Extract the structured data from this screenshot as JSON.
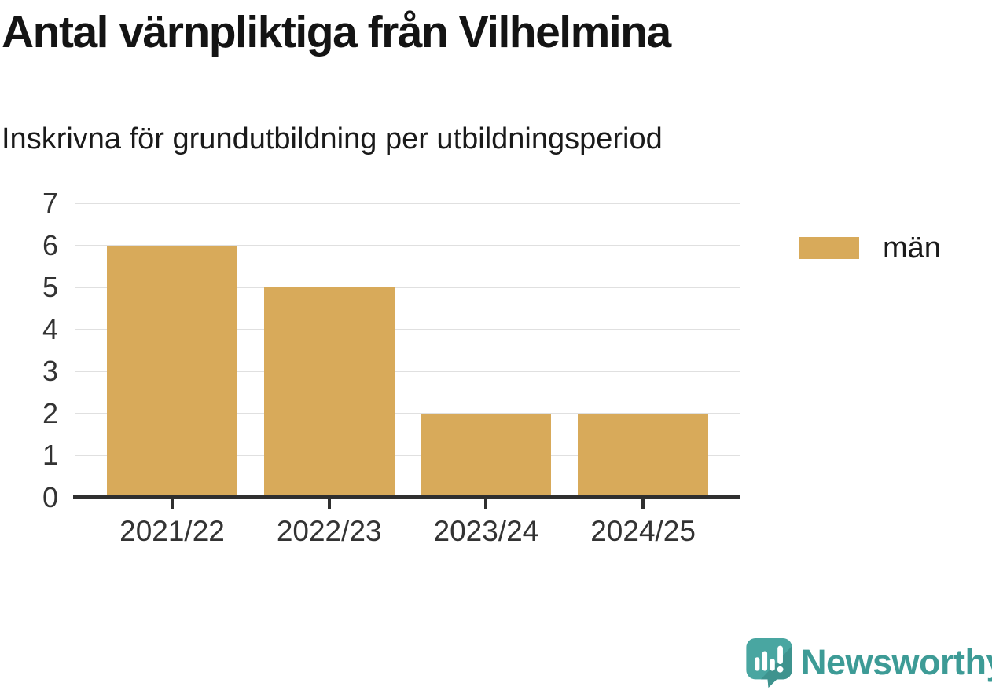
{
  "title": "Antal värnpliktiga från Vilhelmina",
  "subtitle": "Inskrivna för grundutbildning per utbildningsperiod",
  "legend": {
    "items": [
      {
        "label": "män",
        "color": "#d8aa5a"
      }
    ]
  },
  "branding": {
    "name": "Newsworthy",
    "logo_icon": "bar-chart-speech-bubble",
    "teal": "#3d9b96",
    "teal_dark": "#3e938e"
  },
  "chart_data": {
    "type": "bar",
    "title": "Antal värnpliktiga från Vilhelmina",
    "subtitle": "Inskrivna för grundutbildning per utbildningsperiod",
    "categories": [
      "2021/22",
      "2022/23",
      "2023/24",
      "2024/25"
    ],
    "series": [
      {
        "name": "män",
        "values": [
          6,
          5,
          2,
          2
        ],
        "color": "#d8aa5a"
      }
    ],
    "xlabel": "",
    "ylabel": "",
    "ylim": [
      0,
      7
    ],
    "yticks": [
      0,
      1,
      2,
      3,
      4,
      5,
      6,
      7
    ],
    "grid": "horizontal",
    "gridline_color": "#e0e0e0",
    "axis_color": "#2f2f2f",
    "tick_label_color": "#333333",
    "legend_position": "right"
  }
}
